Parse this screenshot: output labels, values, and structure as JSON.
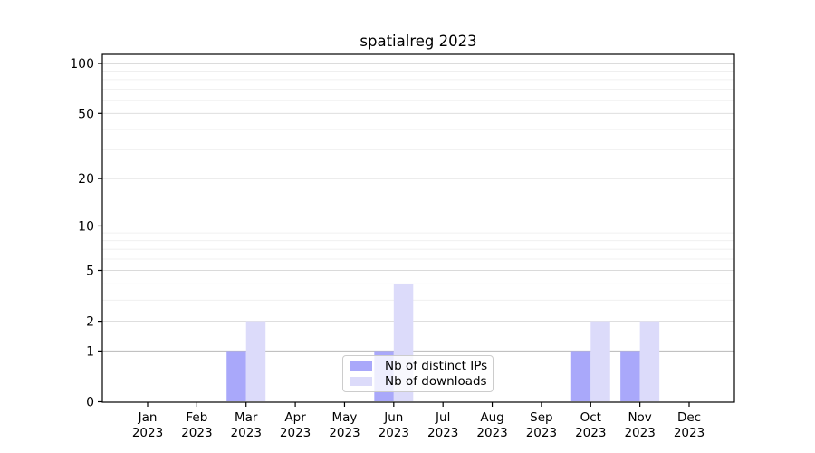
{
  "figure": {
    "title": "spatialreg 2023",
    "background_color": "#ffffff"
  },
  "legend": {
    "position": "lower center",
    "items": [
      {
        "label": "Nb of distinct IPs"
      },
      {
        "label": "Nb of downloads"
      }
    ]
  },
  "chart_data": {
    "type": "bar",
    "title": "spatialreg 2023",
    "categories": [
      "Jan",
      "Feb",
      "Mar",
      "Apr",
      "May",
      "Jun",
      "Jul",
      "Aug",
      "Sep",
      "Oct",
      "Nov",
      "Dec"
    ],
    "year_label": "2023",
    "series": [
      {
        "name": "Nb of distinct IPs",
        "color": "#a9a8fa",
        "values": [
          0,
          0,
          1,
          0,
          0,
          1,
          0,
          0,
          0,
          1,
          1,
          0
        ]
      },
      {
        "name": "Nb of downloads",
        "color": "#dcdbfa",
        "values": [
          0,
          0,
          2,
          0,
          0,
          4,
          0,
          0,
          0,
          2,
          2,
          0
        ]
      }
    ],
    "xlabel": "",
    "ylabel": "",
    "yscale": "log1p",
    "ylim": [
      0,
      113
    ],
    "yticks": [
      0,
      1,
      2,
      5,
      10,
      20,
      50,
      100
    ],
    "grid": {
      "on": true,
      "decade_lines": [
        1,
        10,
        100
      ],
      "labeled_lines": [
        2,
        5,
        20,
        50
      ],
      "minor_lines": [
        3,
        4,
        6,
        7,
        8,
        9,
        30,
        40,
        60,
        70,
        80,
        90
      ],
      "decade_color": "#b8b8b8",
      "labeled_color": "#dadada",
      "minor_color": "#ededed"
    },
    "axis_color": "#000000",
    "tick_label_color": "#000000",
    "legend_position": "lower center"
  }
}
